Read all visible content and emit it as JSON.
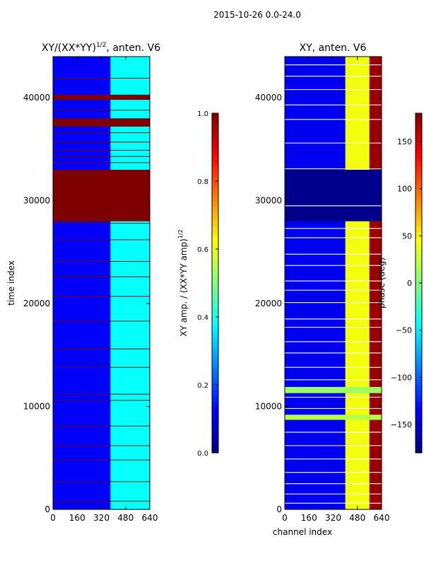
{
  "suptitle": "2015-10-26 0.0-24.0",
  "colors": {
    "jet": [
      "#00007f",
      "#0000ff",
      "#007fff",
      "#00ffff",
      "#7fff7f",
      "#ffff00",
      "#ff7f00",
      "#ff0000",
      "#7f0000"
    ],
    "axis": "#000000",
    "background": "#ffffff"
  },
  "chart_data": [
    {
      "type": "heatmap",
      "title": "XY/(XX*YY)",
      "title_sup": "1/2",
      "title_suffix": ", anten. V6",
      "xlabel": "",
      "ylabel": "time index",
      "xlim": [
        0,
        640
      ],
      "ylim": [
        0,
        44000
      ],
      "xticks": [
        0,
        160,
        320,
        480,
        640
      ],
      "yticks": [
        0,
        10000,
        20000,
        30000,
        40000
      ],
      "colorbar": {
        "label": "XY amp. / (XX*YY amp)",
        "label_sup": "1/2",
        "range": [
          0.0,
          1.0
        ],
        "ticks": [
          "0.0",
          "0.2",
          "0.4",
          "0.6",
          "0.8",
          "1.0"
        ],
        "tick_values": [
          0.0,
          0.2,
          0.4,
          0.6,
          0.8,
          1.0
        ]
      },
      "base_value": 0.12,
      "columns": [
        {
          "x0": 0,
          "x1": 380,
          "value": 0.12
        },
        {
          "x0": 380,
          "x1": 640,
          "value": 0.38
        }
      ],
      "bands": [
        {
          "y0": 28000,
          "y1": 33000,
          "value": 1.0
        },
        {
          "y0": 37200,
          "y1": 38000,
          "value": 1.0
        },
        {
          "y0": 39800,
          "y1": 40300,
          "value": 1.0
        }
      ],
      "lines": [
        800,
        2700,
        4800,
        6200,
        8100,
        10600,
        11200,
        13800,
        15600,
        18300,
        20700,
        22600,
        24100,
        26200,
        27800,
        33700,
        34300,
        34900,
        35700,
        36600,
        38800,
        41900
      ]
    },
    {
      "type": "heatmap",
      "title": "XY, anten. V6",
      "title_sup": "",
      "title_suffix": "",
      "xlabel": "channel index",
      "ylabel": "",
      "xlim": [
        0,
        640
      ],
      "ylim": [
        0,
        44000
      ],
      "xticks": [
        0,
        160,
        320,
        480,
        640
      ],
      "yticks": [
        0,
        10000,
        20000,
        30000,
        40000
      ],
      "colorbar": {
        "label": "phase (deg)",
        "label_sup": "",
        "range": [
          -180,
          180
        ],
        "ticks": [
          "−150",
          "−100",
          "−50",
          "0",
          "50",
          "100",
          "150"
        ],
        "tick_values": [
          -150,
          -100,
          -50,
          0,
          50,
          100,
          150
        ]
      },
      "base_value": -140,
      "columns": [
        {
          "x0": 0,
          "x1": 400,
          "value": -140
        },
        {
          "x0": 400,
          "x1": 560,
          "value": 40
        },
        {
          "x0": 560,
          "x1": 640,
          "value": 170
        }
      ],
      "bands": [
        {
          "y0": 28000,
          "y1": 33000,
          "value": -175
        },
        {
          "y0": 11300,
          "y1": 11900,
          "value": 10
        },
        {
          "y0": 8700,
          "y1": 9200,
          "value": 20
        }
      ],
      "lines": [
        600,
        1500,
        2500,
        3600,
        4900,
        6200,
        7500,
        9800,
        10900,
        12600,
        13800,
        15200,
        16300,
        17700,
        18500,
        20100,
        21300,
        22200,
        23700,
        24800,
        26400,
        27300,
        29500,
        33100,
        35600,
        37900,
        39300,
        40800,
        42100,
        43200
      ]
    }
  ]
}
